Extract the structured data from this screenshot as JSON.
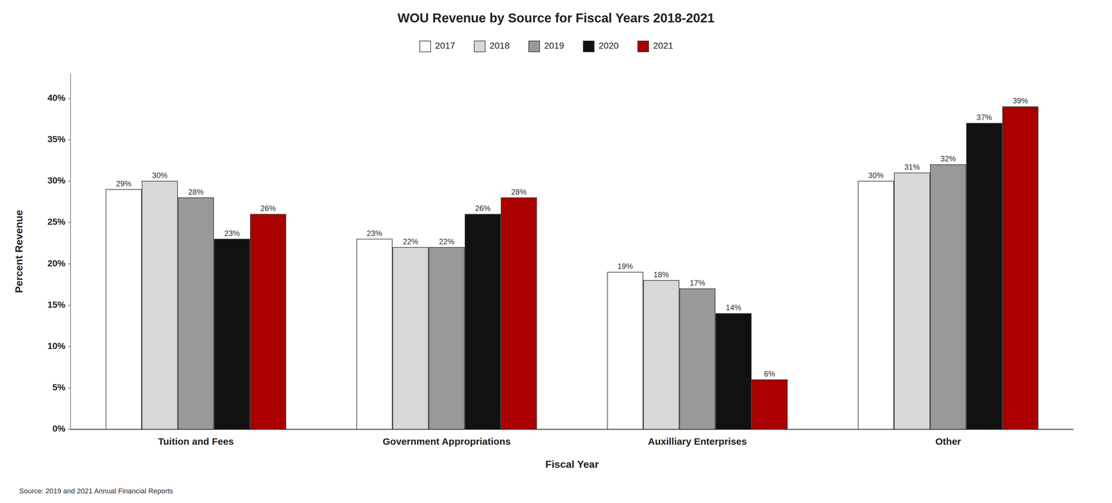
{
  "chart_data": {
    "type": "bar",
    "title": "WOU Revenue by Source for Fiscal Years 2018-2021",
    "xlabel": "Fiscal Year",
    "ylabel": "Percent Revenue",
    "categories": [
      "Tuition and Fees",
      "Government Appropriations",
      "Auxilliary Enterprises",
      "Other"
    ],
    "series": [
      {
        "name": "2017",
        "color": "#ffffff",
        "values": [
          29,
          23,
          19,
          30
        ],
        "value_labels": [
          "29%",
          "23%",
          "19%",
          "30%"
        ]
      },
      {
        "name": "2018",
        "color": "#d8d8d8",
        "values": [
          30,
          22,
          18,
          31
        ],
        "value_labels": [
          "30%",
          "22%",
          "18%",
          "31%"
        ]
      },
      {
        "name": "2019",
        "color": "#999999",
        "values": [
          28,
          22,
          17,
          32
        ],
        "value_labels": [
          "28%",
          "22%",
          "17%",
          "32%"
        ]
      },
      {
        "name": "2020",
        "color": "#111111",
        "values": [
          23,
          26,
          14,
          37
        ],
        "value_labels": [
          "23%",
          "26%",
          "14%",
          "37%"
        ]
      },
      {
        "name": "2021",
        "color": "#aa0000",
        "values": [
          26,
          28,
          6,
          39
        ],
        "value_labels": [
          "26%",
          "28%",
          "6%",
          "39%"
        ]
      }
    ],
    "ylim": [
      0,
      43
    ],
    "yticks": [
      {
        "value": 0,
        "label": "0%"
      },
      {
        "value": 5,
        "label": "5%"
      },
      {
        "value": 10,
        "label": "10%"
      },
      {
        "value": 15,
        "label": "15%"
      },
      {
        "value": 20,
        "label": "20%"
      },
      {
        "value": 25,
        "label": "25%"
      },
      {
        "value": 30,
        "label": "30%"
      },
      {
        "value": 35,
        "label": "35%"
      },
      {
        "value": 40,
        "label": "40%"
      }
    ],
    "grid": false,
    "legend": "top",
    "data_labels": true,
    "annotations": [
      "Source: 2019 and 2021 Annual Financial Reports"
    ]
  }
}
